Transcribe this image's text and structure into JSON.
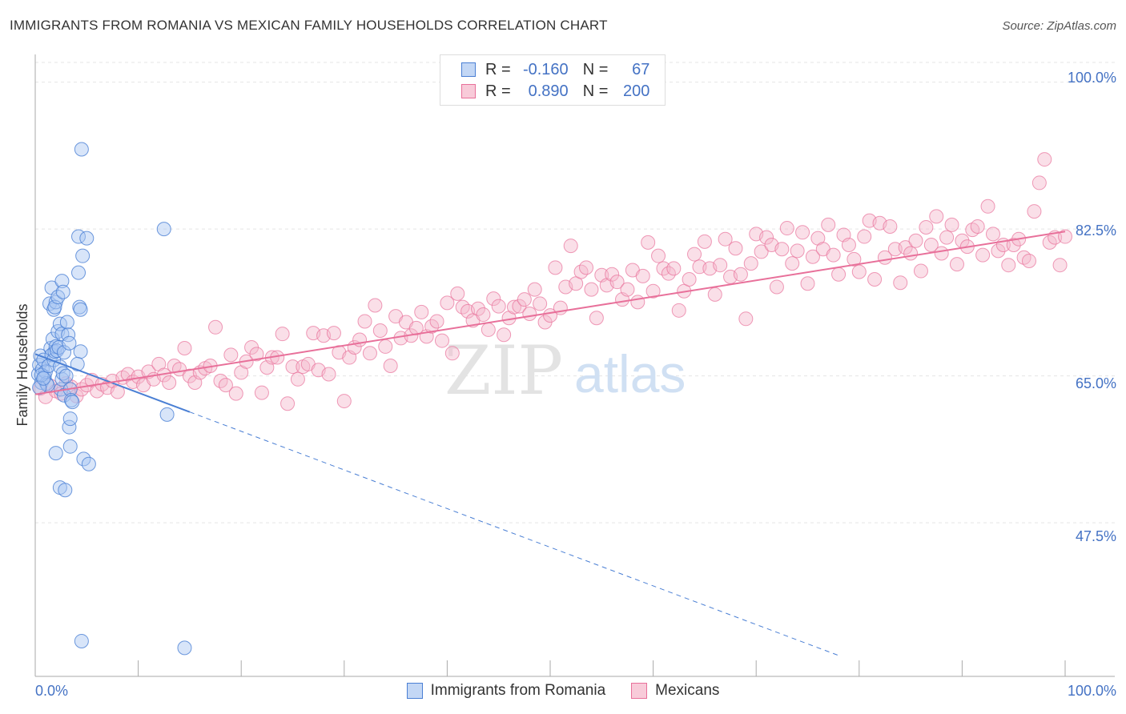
{
  "header": {
    "title": "IMMIGRANTS FROM ROMANIA VS MEXICAN FAMILY HOUSEHOLDS CORRELATION CHART",
    "source": "Source: ZipAtlas.com"
  },
  "legend_top": {
    "rows": [
      {
        "r_label": "R =",
        "r_value": "-0.160",
        "n_label": "N =",
        "n_value": "67"
      },
      {
        "r_label": "R =",
        "r_value": "0.890",
        "n_label": "N =",
        "n_value": "200"
      }
    ]
  },
  "watermark": {
    "zip": "ZIP",
    "atlas": "atlas"
  },
  "colors": {
    "blue": "#4a7fd4",
    "blue_fill": "#a9c6f2",
    "pink": "#e8709a",
    "pink_fill": "#f4b8cb",
    "axis_text": "#4472c4",
    "grid": "#e5e5e5"
  },
  "chart_data": {
    "type": "scatter",
    "title": "IMMIGRANTS FROM ROMANIA VS MEXICAN FAMILY HOUSEHOLDS CORRELATION CHART",
    "ylabel": "Family Households",
    "xlabel": "",
    "xlim": [
      0,
      100
    ],
    "ylim": [
      29.2,
      103.3
    ],
    "x_tick_labels": [
      "0.0%",
      "100.0%"
    ],
    "y_ticks": [
      47.5,
      65.0,
      82.5,
      100.0
    ],
    "y_tick_labels": [
      "47.5%",
      "65.0%",
      "82.5%",
      "100.0%"
    ],
    "grid": true,
    "legend_position": "bottom",
    "series": [
      {
        "name": "Immigrants from Romania",
        "color": "#4a7fd4",
        "R": -0.16,
        "N": 67,
        "trend": {
          "x0": 0,
          "y0": 67.6,
          "x1": 15,
          "y1": 60.7,
          "dashed_to_x": 78.2,
          "dashed_to_y": 31.6
        },
        "points": [
          [
            0.3,
            65.2
          ],
          [
            0.4,
            66.3
          ],
          [
            0.5,
            67.4
          ],
          [
            0.6,
            64.2
          ],
          [
            0.7,
            65.8
          ],
          [
            0.8,
            66.9
          ],
          [
            0.9,
            64.9
          ],
          [
            1.0,
            65.5
          ],
          [
            1.1,
            64.1
          ],
          [
            1.2,
            63.9
          ],
          [
            0.4,
            63.6
          ],
          [
            0.6,
            65.1
          ],
          [
            0.8,
            64.7
          ],
          [
            1.3,
            66.2
          ],
          [
            1.5,
            68.3
          ],
          [
            1.6,
            67.5
          ],
          [
            1.7,
            69.4
          ],
          [
            1.8,
            66.9
          ],
          [
            1.9,
            67.9
          ],
          [
            2.0,
            68.5
          ],
          [
            2.1,
            68.0
          ],
          [
            2.2,
            70.3
          ],
          [
            2.3,
            68.4
          ],
          [
            2.4,
            66.1
          ],
          [
            2.5,
            63.4
          ],
          [
            2.6,
            64.6
          ],
          [
            2.7,
            65.3
          ],
          [
            2.8,
            62.7
          ],
          [
            1.4,
            73.6
          ],
          [
            1.6,
            75.5
          ],
          [
            1.8,
            72.9
          ],
          [
            2.0,
            73.8
          ],
          [
            2.4,
            71.2
          ],
          [
            2.6,
            70.0
          ],
          [
            2.8,
            67.8
          ],
          [
            3.0,
            65.0
          ],
          [
            3.1,
            71.4
          ],
          [
            3.2,
            69.9
          ],
          [
            3.3,
            68.9
          ],
          [
            3.4,
            63.4
          ],
          [
            3.5,
            62.1
          ],
          [
            1.9,
            73.2
          ],
          [
            2.2,
            74.4
          ],
          [
            2.6,
            76.3
          ],
          [
            2.7,
            75.0
          ],
          [
            4.2,
            77.3
          ],
          [
            4.3,
            73.2
          ],
          [
            4.4,
            72.9
          ],
          [
            4.4,
            67.9
          ],
          [
            4.1,
            66.4
          ],
          [
            4.2,
            81.6
          ],
          [
            4.6,
            79.3
          ],
          [
            5.0,
            81.4
          ],
          [
            4.5,
            92.0
          ],
          [
            3.3,
            58.9
          ],
          [
            3.4,
            59.9
          ],
          [
            3.6,
            61.9
          ],
          [
            2.0,
            55.8
          ],
          [
            3.4,
            56.6
          ],
          [
            4.7,
            55.1
          ],
          [
            5.2,
            54.5
          ],
          [
            2.4,
            51.7
          ],
          [
            2.9,
            51.4
          ],
          [
            12.5,
            82.5
          ],
          [
            12.8,
            60.4
          ],
          [
            4.5,
            33.4
          ],
          [
            14.5,
            32.6
          ]
        ]
      },
      {
        "name": "Mexicans",
        "color": "#e8709a",
        "R": 0.89,
        "N": 200,
        "trend": {
          "x0": 0,
          "y0": 62.8,
          "x1": 100,
          "y1": 82.2
        },
        "points": [
          [
            0.5,
            63.5
          ],
          [
            1.0,
            62.5
          ],
          [
            1.5,
            63.8
          ],
          [
            2.0,
            63.2
          ],
          [
            2.5,
            62.9
          ],
          [
            3.0,
            64.1
          ],
          [
            3.5,
            63.7
          ],
          [
            4.0,
            62.6
          ],
          [
            4.5,
            63.4
          ],
          [
            5.0,
            63.9
          ],
          [
            5.5,
            64.5
          ],
          [
            6.0,
            63.2
          ],
          [
            6.5,
            64.0
          ],
          [
            7.0,
            63.6
          ],
          [
            7.5,
            64.4
          ],
          [
            8.0,
            63.1
          ],
          [
            8.5,
            64.8
          ],
          [
            9.0,
            65.2
          ],
          [
            9.5,
            64.3
          ],
          [
            10.0,
            64.9
          ],
          [
            10.5,
            63.9
          ],
          [
            11.0,
            65.5
          ],
          [
            11.5,
            64.6
          ],
          [
            12.0,
            66.4
          ],
          [
            12.5,
            65.1
          ],
          [
            13.0,
            64.2
          ],
          [
            13.5,
            66.2
          ],
          [
            14.0,
            65.8
          ],
          [
            14.5,
            68.3
          ],
          [
            15.0,
            65.0
          ],
          [
            15.5,
            64.2
          ],
          [
            16.0,
            65.4
          ],
          [
            16.5,
            65.9
          ],
          [
            17.0,
            66.2
          ],
          [
            17.5,
            70.8
          ],
          [
            18.0,
            64.4
          ],
          [
            18.5,
            63.9
          ],
          [
            19.0,
            67.5
          ],
          [
            19.5,
            62.9
          ],
          [
            20.0,
            65.4
          ],
          [
            20.5,
            66.7
          ],
          [
            21.0,
            68.4
          ],
          [
            21.5,
            67.6
          ],
          [
            22.0,
            63.0
          ],
          [
            22.5,
            66.0
          ],
          [
            23.0,
            67.2
          ],
          [
            23.5,
            67.2
          ],
          [
            24.0,
            70.0
          ],
          [
            24.5,
            61.7
          ],
          [
            25.0,
            66.1
          ],
          [
            25.5,
            64.6
          ],
          [
            26.0,
            66.1
          ],
          [
            26.5,
            66.4
          ],
          [
            27.0,
            70.1
          ],
          [
            27.5,
            65.7
          ],
          [
            28.0,
            69.8
          ],
          [
            28.5,
            65.2
          ],
          [
            29.0,
            70.1
          ],
          [
            29.5,
            67.8
          ],
          [
            30.0,
            62.0
          ],
          [
            30.5,
            67.2
          ],
          [
            31.0,
            68.4
          ],
          [
            31.5,
            69.3
          ],
          [
            32.0,
            71.5
          ],
          [
            32.5,
            67.7
          ],
          [
            33.0,
            73.4
          ],
          [
            33.5,
            70.4
          ],
          [
            34.0,
            68.5
          ],
          [
            34.5,
            66.2
          ],
          [
            35.0,
            72.1
          ],
          [
            35.5,
            69.5
          ],
          [
            36.0,
            71.4
          ],
          [
            36.5,
            69.8
          ],
          [
            37.0,
            70.7
          ],
          [
            37.5,
            72.6
          ],
          [
            38.0,
            69.7
          ],
          [
            38.5,
            70.9
          ],
          [
            39.0,
            71.5
          ],
          [
            39.5,
            69.2
          ],
          [
            40.0,
            73.7
          ],
          [
            40.5,
            67.7
          ],
          [
            41.0,
            74.8
          ],
          [
            41.5,
            73.2
          ],
          [
            42.0,
            72.7
          ],
          [
            42.5,
            71.6
          ],
          [
            43.0,
            73.0
          ],
          [
            43.5,
            72.3
          ],
          [
            44.0,
            70.5
          ],
          [
            44.5,
            74.2
          ],
          [
            45.0,
            73.3
          ],
          [
            45.5,
            69.9
          ],
          [
            46.0,
            71.9
          ],
          [
            46.5,
            73.2
          ],
          [
            47.0,
            73.3
          ],
          [
            47.5,
            74.1
          ],
          [
            48.0,
            72.4
          ],
          [
            48.5,
            75.3
          ],
          [
            49.0,
            73.6
          ],
          [
            49.5,
            71.4
          ],
          [
            50.0,
            72.2
          ],
          [
            50.5,
            77.9
          ],
          [
            51.0,
            73.1
          ],
          [
            51.5,
            75.6
          ],
          [
            52.0,
            80.5
          ],
          [
            52.5,
            76.0
          ],
          [
            53.0,
            77.4
          ],
          [
            53.5,
            77.9
          ],
          [
            54.0,
            75.3
          ],
          [
            54.5,
            71.9
          ],
          [
            55.0,
            77.0
          ],
          [
            55.5,
            75.8
          ],
          [
            56.0,
            77.1
          ],
          [
            56.5,
            76.2
          ],
          [
            57.0,
            74.1
          ],
          [
            57.5,
            75.3
          ],
          [
            58.0,
            77.6
          ],
          [
            58.5,
            73.8
          ],
          [
            59.0,
            76.9
          ],
          [
            59.5,
            80.9
          ],
          [
            60.0,
            75.1
          ],
          [
            60.5,
            79.3
          ],
          [
            61.0,
            77.8
          ],
          [
            61.5,
            77.2
          ],
          [
            62.0,
            77.8
          ],
          [
            62.5,
            72.8
          ],
          [
            63.0,
            75.1
          ],
          [
            63.5,
            76.5
          ],
          [
            64.0,
            79.5
          ],
          [
            64.5,
            78.0
          ],
          [
            65.0,
            81.0
          ],
          [
            65.5,
            77.8
          ],
          [
            66.0,
            74.7
          ],
          [
            66.5,
            78.2
          ],
          [
            67.0,
            81.3
          ],
          [
            67.5,
            76.8
          ],
          [
            68.0,
            80.2
          ],
          [
            68.5,
            77.1
          ],
          [
            69.0,
            71.8
          ],
          [
            69.5,
            78.4
          ],
          [
            70.0,
            81.9
          ],
          [
            70.5,
            79.8
          ],
          [
            71.0,
            81.5
          ],
          [
            71.5,
            80.6
          ],
          [
            72.0,
            75.6
          ],
          [
            72.5,
            80.1
          ],
          [
            73.0,
            82.6
          ],
          [
            73.5,
            78.4
          ],
          [
            74.0,
            79.9
          ],
          [
            74.5,
            82.1
          ],
          [
            75.0,
            76.0
          ],
          [
            75.5,
            79.2
          ],
          [
            76.0,
            81.4
          ],
          [
            76.5,
            80.1
          ],
          [
            77.0,
            83.0
          ],
          [
            77.5,
            79.4
          ],
          [
            78.0,
            77.1
          ],
          [
            78.5,
            81.8
          ],
          [
            79.0,
            80.6
          ],
          [
            79.5,
            78.9
          ],
          [
            80.0,
            77.4
          ],
          [
            80.5,
            81.6
          ],
          [
            81.0,
            83.5
          ],
          [
            81.5,
            76.5
          ],
          [
            82.0,
            83.2
          ],
          [
            82.5,
            79.1
          ],
          [
            83.0,
            82.8
          ],
          [
            83.5,
            80.1
          ],
          [
            84.0,
            76.1
          ],
          [
            84.5,
            80.3
          ],
          [
            85.0,
            79.6
          ],
          [
            85.5,
            81.1
          ],
          [
            86.0,
            77.5
          ],
          [
            86.5,
            82.7
          ],
          [
            87.0,
            80.6
          ],
          [
            87.5,
            84.0
          ],
          [
            88.0,
            79.6
          ],
          [
            88.5,
            81.5
          ],
          [
            89.0,
            83.0
          ],
          [
            89.5,
            78.3
          ],
          [
            90.0,
            81.1
          ],
          [
            90.5,
            80.4
          ],
          [
            91.0,
            82.4
          ],
          [
            91.5,
            82.8
          ],
          [
            92.0,
            79.4
          ],
          [
            92.5,
            85.2
          ],
          [
            93.0,
            81.9
          ],
          [
            93.5,
            79.9
          ],
          [
            94.0,
            80.6
          ],
          [
            94.5,
            78.2
          ],
          [
            95.0,
            80.6
          ],
          [
            95.5,
            81.3
          ],
          [
            96.0,
            79.1
          ],
          [
            96.5,
            78.7
          ],
          [
            97.0,
            84.6
          ],
          [
            97.5,
            88.0
          ],
          [
            98.0,
            90.8
          ],
          [
            98.5,
            80.9
          ],
          [
            99.0,
            81.5
          ],
          [
            99.5,
            78.2
          ],
          [
            100.0,
            81.6
          ]
        ]
      }
    ]
  },
  "bottom_legend": {
    "items": [
      {
        "label": "Immigrants from Romania"
      },
      {
        "label": "Mexicans"
      }
    ]
  }
}
